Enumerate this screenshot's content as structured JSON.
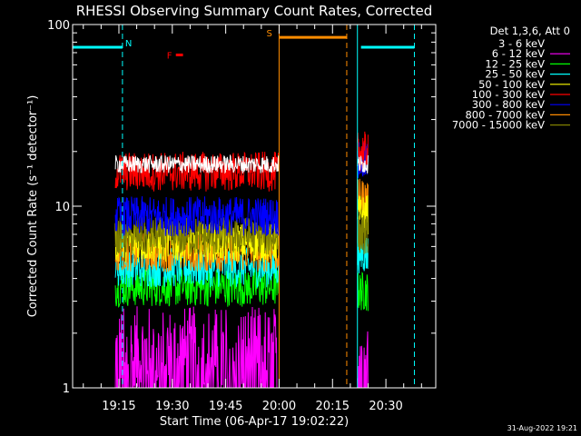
{
  "chart_data": {
    "type": "line",
    "title": "RHESSI Observing Summary Count Rates, Corrected",
    "xlabel": "Start Time (06-Apr-17 19:02:22)",
    "ylabel": "Corrected Count Rate (s⁻¹ detector⁻¹)",
    "yscale": "log",
    "ylim": [
      1,
      100
    ],
    "xlim": [
      "19:02",
      "20:44"
    ],
    "xticks": [
      "19:15",
      "19:30",
      "19:45",
      "20:00",
      "20:15",
      "20:30"
    ],
    "yticks": [
      "1",
      "10",
      "100"
    ],
    "legend_header": "Det 1,3,6, Att 0",
    "legend_position": "right",
    "timestamp": "31-Aug-2022 19:21",
    "series": [
      {
        "name": "3 - 6 keV",
        "color": "#ffffff",
        "level1": 17,
        "level2": 17
      },
      {
        "name": "6 - 12 keV",
        "color": "#ff00ff",
        "level1": 1.5,
        "level2": 1.5
      },
      {
        "name": "12 - 25 keV",
        "color": "#00ff00",
        "level1": 3.6,
        "level2": 3.4
      },
      {
        "name": "25 - 50 keV",
        "color": "#00ffff",
        "level1": 4.6,
        "level2": 5.5
      },
      {
        "name": "50 - 100 keV",
        "color": "#ffff00",
        "level1": 6.3,
        "level2": 9.0
      },
      {
        "name": "100 - 300 keV",
        "color": "#ff0000",
        "level1": 15.5,
        "level2": 20.0
      },
      {
        "name": "300 - 800 keV",
        "color": "#0000ff",
        "level1": 8.8,
        "level2": 17.5
      },
      {
        "name": "800 - 7000 keV",
        "color": "#ff8c00",
        "level1": 5.6,
        "level2": 11.0
      },
      {
        "name": "7000 - 15000 keV",
        "color": "#808000",
        "level1": 6.8,
        "level2": 7.0
      }
    ],
    "intervals": [
      {
        "start": "19:14",
        "end": "20:00"
      },
      {
        "start": "20:22",
        "end": "20:25"
      }
    ],
    "markers": [
      {
        "label": "N",
        "color": "#00ffff",
        "start": "19:02",
        "end": "19:16",
        "level": 75
      },
      {
        "label": "F",
        "color": "#ff0000",
        "start": "19:31",
        "end": "19:33",
        "level": 68
      },
      {
        "label": "S",
        "color": "#ff8c00",
        "start": "20:00",
        "end": "20:19",
        "level": 85
      },
      {
        "label": "",
        "color": "#00ffff",
        "start": "20:23",
        "end": "20:38",
        "level": 75
      }
    ],
    "vlines": [
      {
        "time": "19:02",
        "color": "#00ffff",
        "dash": false
      },
      {
        "time": "19:16",
        "color": "#00ffff",
        "dash": true
      },
      {
        "time": "20:00",
        "color": "#ff8c00",
        "dash": false
      },
      {
        "time": "20:19",
        "color": "#ff8c00",
        "dash": true
      },
      {
        "time": "20:22",
        "color": "#00ffff",
        "dash": false
      },
      {
        "time": "20:38",
        "color": "#00ffff",
        "dash": true
      }
    ]
  }
}
